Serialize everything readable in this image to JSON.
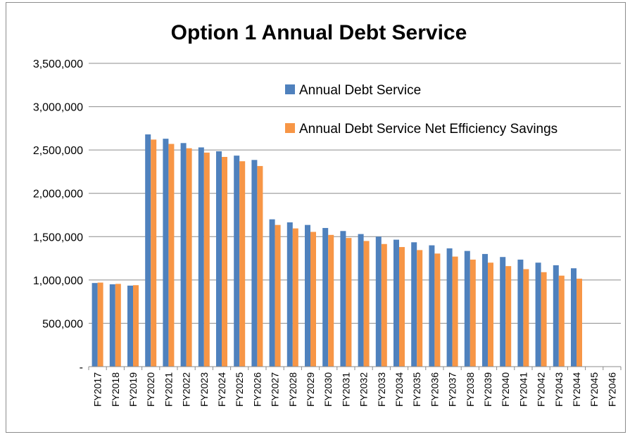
{
  "chart_data": {
    "type": "bar",
    "title": "Option 1 Annual Debt Service",
    "xlabel": "",
    "ylabel": "",
    "ylim": [
      0,
      3500000
    ],
    "yticks": [
      0,
      500000,
      1000000,
      1500000,
      2000000,
      2500000,
      3000000,
      3500000
    ],
    "ytick_labels": [
      "-",
      "500,000",
      "1,000,000",
      "1,500,000",
      "2,000,000",
      "2,500,000",
      "3,000,000",
      "3,500,000"
    ],
    "grid": true,
    "legend_position": "top-right",
    "categories": [
      "FY2017",
      "FY2018",
      "FY2019",
      "FY2020",
      "FY2021",
      "FY2022",
      "FY2023",
      "FY2024",
      "FY2025",
      "FY2026",
      "FY2027",
      "FY2028",
      "FY2029",
      "FY2030",
      "FY2031",
      "FY2032",
      "FY2033",
      "FY2034",
      "FY2035",
      "FY2036",
      "FY2037",
      "FY2038",
      "FY2039",
      "FY2040",
      "FY2041",
      "FY2042",
      "FY2043",
      "FY2044",
      "FY2045",
      "FY2046"
    ],
    "series": [
      {
        "name": "Annual Debt Service",
        "color": "#4f81bd",
        "values": [
          965000,
          950000,
          935000,
          2680000,
          2630000,
          2580000,
          2530000,
          2485000,
          2435000,
          2385000,
          1700000,
          1665000,
          1635000,
          1600000,
          1565000,
          1530000,
          1500000,
          1465000,
          1435000,
          1400000,
          1365000,
          1335000,
          1300000,
          1265000,
          1235000,
          1200000,
          1170000,
          1135000,
          0,
          0
        ]
      },
      {
        "name": "Annual Debt Service Net Efficiency Savings",
        "color": "#f79646",
        "values": [
          970000,
          955000,
          940000,
          2620000,
          2570000,
          2520000,
          2470000,
          2420000,
          2370000,
          2315000,
          1635000,
          1595000,
          1555000,
          1520000,
          1485000,
          1450000,
          1415000,
          1380000,
          1345000,
          1305000,
          1270000,
          1235000,
          1200000,
          1160000,
          1125000,
          1090000,
          1050000,
          1015000,
          0,
          0
        ]
      }
    ]
  }
}
